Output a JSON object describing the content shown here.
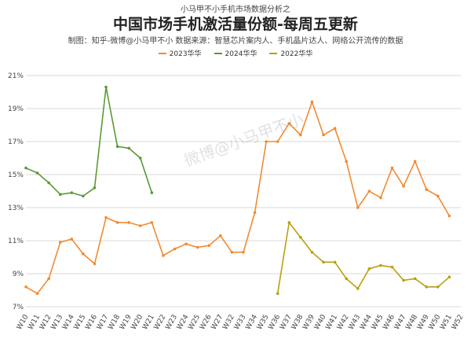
{
  "header": {
    "top_caption": "小马甲不小手机市场数据分析之",
    "title": "中国市场手机激活量份额-每周五更新",
    "credit": "制图：知乎-微博@小马甲不小 数据来源：智慧芯片案内人、手机晶片达人、网络公开流传的数据"
  },
  "watermark": "微博@小马甲不小",
  "colors": {
    "s2023": "#f28a30",
    "s2024": "#5a9a32",
    "s2022": "#b8a010",
    "grid": "#d9d9d9"
  },
  "chart_data": {
    "type": "line",
    "title": "中国市场手机激活量份额-每周五更新",
    "legend_position": "top",
    "grid": true,
    "ylim": [
      7,
      21
    ],
    "yticks": [
      "7%",
      "9%",
      "11%",
      "13%",
      "15%",
      "17%",
      "19%",
      "21%"
    ],
    "categories": [
      "W10",
      "W11",
      "W12",
      "W13",
      "W14",
      "W15",
      "W16",
      "W17",
      "W18",
      "W19",
      "W20",
      "W21",
      "W22",
      "W23",
      "W24",
      "W25",
      "W26",
      "W27",
      "W32",
      "W33",
      "W34",
      "W35",
      "W36",
      "W37",
      "W38",
      "W39",
      "W40",
      "W41",
      "W42",
      "W43",
      "W44",
      "W45",
      "W46",
      "W47",
      "W48",
      "W49",
      "W50",
      "W51",
      "W52"
    ],
    "series": [
      {
        "name": "2023华华",
        "color": "#f28a30",
        "values": [
          8.2,
          7.8,
          8.7,
          10.9,
          11.1,
          10.2,
          9.6,
          12.4,
          12.1,
          12.1,
          11.9,
          12.1,
          10.1,
          10.5,
          10.8,
          10.6,
          10.7,
          11.3,
          10.3,
          10.3,
          12.7,
          17.0,
          17.0,
          18.1,
          17.4,
          19.4,
          17.4,
          17.8,
          15.8,
          13.0,
          14.0,
          13.6,
          15.4,
          14.3,
          15.8,
          14.1,
          13.7,
          12.5,
          null
        ]
      },
      {
        "name": "2024华华",
        "color": "#5a9a32",
        "values": [
          15.4,
          15.1,
          14.5,
          13.8,
          13.9,
          13.7,
          14.2,
          20.3,
          16.7,
          16.6,
          16.0,
          13.9,
          null,
          null,
          null,
          null,
          null,
          null,
          null,
          null,
          null,
          null,
          null,
          null,
          null,
          null,
          null,
          null,
          null,
          null,
          null,
          null,
          null,
          null,
          null,
          null,
          null,
          null,
          null
        ]
      },
      {
        "name": "2022华华",
        "color": "#b8a010",
        "values": [
          null,
          null,
          null,
          null,
          null,
          null,
          null,
          null,
          null,
          null,
          null,
          null,
          null,
          null,
          null,
          null,
          null,
          null,
          null,
          null,
          null,
          null,
          7.8,
          12.1,
          11.2,
          10.3,
          9.7,
          9.7,
          8.7,
          8.1,
          9.3,
          9.5,
          9.4,
          8.6,
          8.7,
          8.2,
          8.2,
          8.8,
          null
        ]
      }
    ]
  }
}
